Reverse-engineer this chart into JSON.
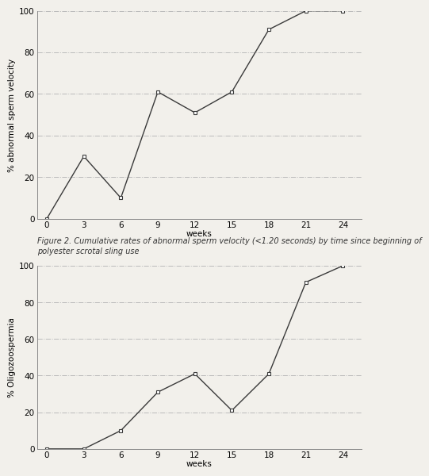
{
  "chart1": {
    "x": [
      0,
      3,
      6,
      9,
      12,
      15,
      18,
      21,
      24
    ],
    "y": [
      0,
      30,
      10,
      61,
      51,
      61,
      91,
      100,
      100
    ],
    "ylabel": "% abnormal sperm velocity",
    "xlabel": "weeks",
    "ylim": [
      0,
      100
    ],
    "yticks": [
      0,
      20,
      40,
      60,
      80,
      100
    ],
    "xticks": [
      0,
      3,
      6,
      9,
      12,
      15,
      18,
      21,
      24
    ],
    "caption_line1": "Figure 2. Cumulative rates of abnormal sperm velocity (<1.20 seconds) by time since beginning of",
    "caption_line2": "polyester scrotal sling use"
  },
  "chart2": {
    "x": [
      0,
      3,
      6,
      9,
      12,
      15,
      18,
      21,
      24
    ],
    "y": [
      0,
      0,
      10,
      31,
      41,
      21,
      41,
      91,
      100
    ],
    "ylabel": "% Oligozoospermia",
    "xlabel": "weeks",
    "ylim": [
      0,
      100
    ],
    "yticks": [
      0,
      20,
      40,
      60,
      80,
      100
    ],
    "xticks": [
      0,
      3,
      6,
      9,
      12,
      15,
      18,
      21,
      24
    ]
  },
  "line_color": "#3a3a3a",
  "marker": "s",
  "marker_size": 3.5,
  "marker_facecolor": "white",
  "grid_color": "#bbbbbb",
  "grid_linestyle": "-.",
  "bg_color": "#f2f0eb",
  "caption_fontsize": 7,
  "caption_style": "italic",
  "axis_label_fontsize": 7.5,
  "tick_fontsize": 7.5
}
